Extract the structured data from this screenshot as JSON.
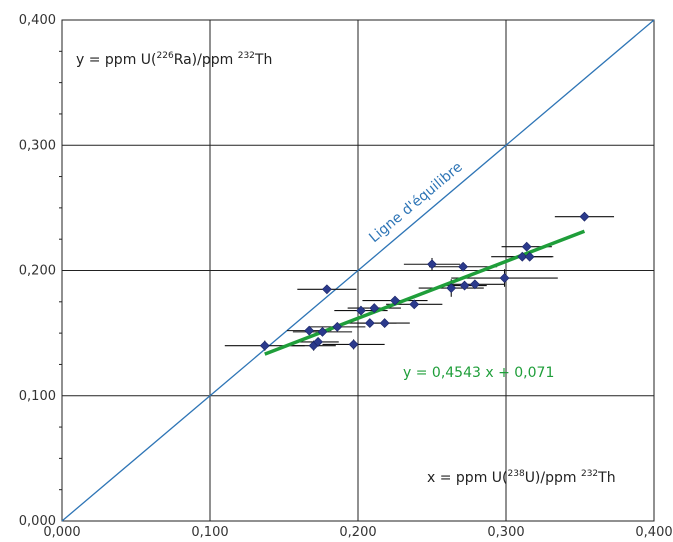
{
  "chart_data": {
    "type": "scatter",
    "x_range": [
      0,
      0.4
    ],
    "y_range": [
      0,
      0.4
    ],
    "x_ticks": [
      {
        "value": 0.0,
        "label": "0,000"
      },
      {
        "value": 0.1,
        "label": "0,100"
      },
      {
        "value": 0.2,
        "label": "0,200"
      },
      {
        "value": 0.3,
        "label": "0,300"
      },
      {
        "value": 0.4,
        "label": "0,400"
      }
    ],
    "y_ticks": [
      {
        "value": 0.0,
        "label": "0,000"
      },
      {
        "value": 0.1,
        "label": "0,100"
      },
      {
        "value": 0.2,
        "label": "0,200"
      },
      {
        "value": 0.3,
        "label": "0,300"
      },
      {
        "value": 0.4,
        "label": "0,400"
      }
    ],
    "grid": true,
    "y_axis_annotation": {
      "prefix": "y = ppm U(",
      "iso1": "226",
      "mid": "Ra)/ppm ",
      "iso2": "232",
      "suffix": "Th"
    },
    "x_axis_annotation": {
      "prefix": "x = ppm U(",
      "iso1": "238",
      "mid": "U)/ppm ",
      "iso2": "232",
      "suffix": "Th"
    },
    "equilibrium_line": {
      "label": "Ligne d'équilibre",
      "x": [
        0,
        0.4
      ],
      "y": [
        0,
        0.4
      ],
      "color": "#2e75b6"
    },
    "regression": {
      "label": "y = 0,4543 x + 0,071",
      "slope": 0.4543,
      "intercept": 0.071,
      "x_start": 0.137,
      "x_end": 0.353,
      "color": "#1f9e3a"
    },
    "point_color": "#2b3a8c",
    "errorbar_color": "#111111",
    "points": [
      {
        "x": 0.137,
        "y": 0.14,
        "xerr": 0.027,
        "yerr": 0.004
      },
      {
        "x": 0.167,
        "y": 0.152,
        "xerr": 0.015,
        "yerr": 0.003
      },
      {
        "x": 0.17,
        "y": 0.14,
        "xerr": 0.015,
        "yerr": 0.004
      },
      {
        "x": 0.173,
        "y": 0.143,
        "xerr": 0.014,
        "yerr": 0.003
      },
      {
        "x": 0.176,
        "y": 0.151,
        "xerr": 0.02,
        "yerr": 0.003
      },
      {
        "x": 0.179,
        "y": 0.185,
        "xerr": 0.02,
        "yerr": 0.003
      },
      {
        "x": 0.186,
        "y": 0.155,
        "xerr": 0.019,
        "yerr": 0.003
      },
      {
        "x": 0.197,
        "y": 0.141,
        "xerr": 0.021,
        "yerr": 0.004
      },
      {
        "x": 0.202,
        "y": 0.168,
        "xerr": 0.018,
        "yerr": 0.003
      },
      {
        "x": 0.208,
        "y": 0.158,
        "xerr": 0.018,
        "yerr": 0.003
      },
      {
        "x": 0.211,
        "y": 0.17,
        "xerr": 0.018,
        "yerr": 0.003
      },
      {
        "x": 0.218,
        "y": 0.158,
        "xerr": 0.017,
        "yerr": 0.003
      },
      {
        "x": 0.225,
        "y": 0.176,
        "xerr": 0.022,
        "yerr": 0.003
      },
      {
        "x": 0.238,
        "y": 0.173,
        "xerr": 0.019,
        "yerr": 0.003
      },
      {
        "x": 0.25,
        "y": 0.205,
        "xerr": 0.019,
        "yerr": 0.005
      },
      {
        "x": 0.263,
        "y": 0.186,
        "xerr": 0.022,
        "yerr": 0.007
      },
      {
        "x": 0.271,
        "y": 0.203,
        "xerr": 0.023,
        "yerr": 0.003
      },
      {
        "x": 0.272,
        "y": 0.188,
        "xerr": 0.015,
        "yerr": 0.003
      },
      {
        "x": 0.279,
        "y": 0.189,
        "xerr": 0.02,
        "yerr": 0.003
      },
      {
        "x": 0.299,
        "y": 0.194,
        "xerr": 0.036,
        "yerr": 0.007
      },
      {
        "x": 0.311,
        "y": 0.211,
        "xerr": 0.021,
        "yerr": 0.003
      },
      {
        "x": 0.314,
        "y": 0.219,
        "xerr": 0.017,
        "yerr": 0.003
      },
      {
        "x": 0.316,
        "y": 0.211,
        "xerr": 0.015,
        "yerr": 0.003
      },
      {
        "x": 0.353,
        "y": 0.243,
        "xerr": 0.02,
        "yerr": 0.003
      }
    ]
  }
}
